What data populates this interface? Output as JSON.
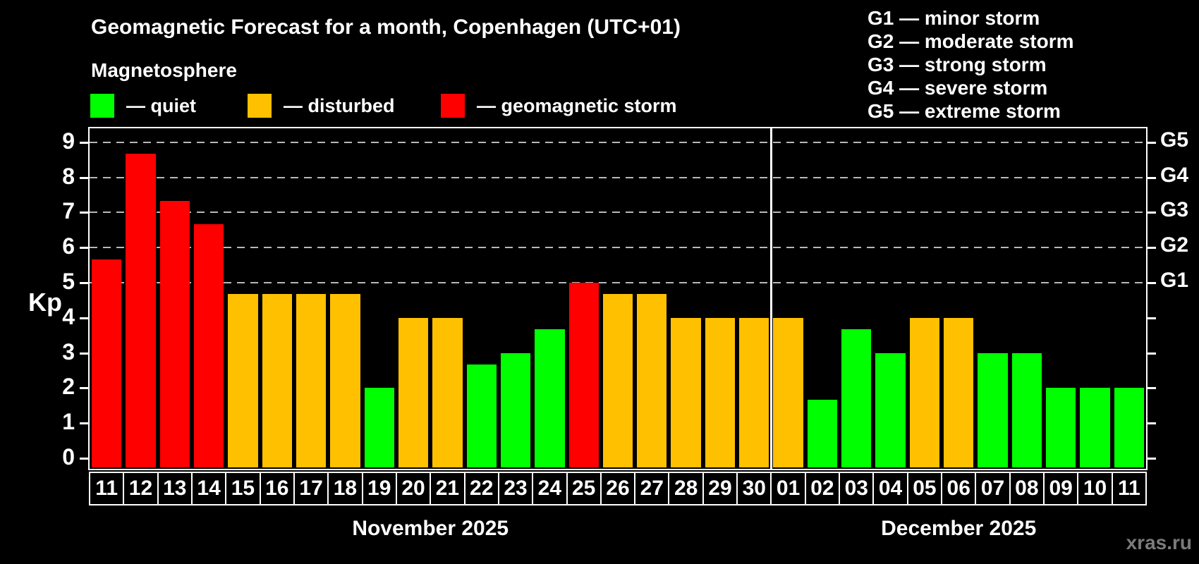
{
  "header": {
    "title": "Geomagnetic Forecast for a month, Copenhagen (UTC+01)",
    "subtitle": "Magnetosphere"
  },
  "legend": {
    "items": [
      {
        "label": "— quiet",
        "state": "quiet",
        "color": "#00ff00"
      },
      {
        "label": "— disturbed",
        "state": "disturbed",
        "color": "#ffc000"
      },
      {
        "label": "— geomagnetic storm",
        "state": "storm",
        "color": "#ff0000"
      }
    ]
  },
  "g_legend": {
    "items": [
      "G1 — minor storm",
      "G2 — moderate storm",
      "G3 — strong storm",
      "G4 — severe storm",
      "G5 — extreme storm"
    ]
  },
  "watermark": "xras.ru",
  "chart_data": {
    "type": "bar",
    "title": "Geomagnetic Forecast for a month, Copenhagen (UTC+01)",
    "subtitle": "Magnetosphere",
    "ylabel": "Kp",
    "ylim": [
      0,
      9
    ],
    "y_ticks": [
      0,
      1,
      2,
      3,
      4,
      5,
      6,
      7,
      8,
      9
    ],
    "gridlines_at": [
      5,
      6,
      7,
      8,
      9
    ],
    "grid": "dashed horizontal at storm levels only",
    "legend_position": "top-left states, top-right G-scale",
    "right_axis": [
      {
        "kp": 5,
        "label": "G1"
      },
      {
        "kp": 6,
        "label": "G2"
      },
      {
        "kp": 7,
        "label": "G3"
      },
      {
        "kp": 8,
        "label": "G4"
      },
      {
        "kp": 9,
        "label": "G5"
      }
    ],
    "state_colors": {
      "quiet": "#00ff00",
      "disturbed": "#ffc000",
      "storm": "#ff0000"
    },
    "months": [
      {
        "label": "November 2025",
        "days": [
          {
            "day": "11",
            "kp": 5.67,
            "state": "storm"
          },
          {
            "day": "12",
            "kp": 8.67,
            "state": "storm"
          },
          {
            "day": "13",
            "kp": 7.33,
            "state": "storm"
          },
          {
            "day": "14",
            "kp": 6.67,
            "state": "storm"
          },
          {
            "day": "15",
            "kp": 4.67,
            "state": "disturbed"
          },
          {
            "day": "16",
            "kp": 4.67,
            "state": "disturbed"
          },
          {
            "day": "17",
            "kp": 4.67,
            "state": "disturbed"
          },
          {
            "day": "18",
            "kp": 4.67,
            "state": "disturbed"
          },
          {
            "day": "19",
            "kp": 2.0,
            "state": "quiet"
          },
          {
            "day": "20",
            "kp": 4.0,
            "state": "disturbed"
          },
          {
            "day": "21",
            "kp": 4.0,
            "state": "disturbed"
          },
          {
            "day": "22",
            "kp": 2.67,
            "state": "quiet"
          },
          {
            "day": "23",
            "kp": 3.0,
            "state": "quiet"
          },
          {
            "day": "24",
            "kp": 3.67,
            "state": "quiet"
          },
          {
            "day": "25",
            "kp": 5.0,
            "state": "storm"
          },
          {
            "day": "26",
            "kp": 4.67,
            "state": "disturbed"
          },
          {
            "day": "27",
            "kp": 4.67,
            "state": "disturbed"
          },
          {
            "day": "28",
            "kp": 4.0,
            "state": "disturbed"
          },
          {
            "day": "29",
            "kp": 4.0,
            "state": "disturbed"
          },
          {
            "day": "30",
            "kp": 4.0,
            "state": "disturbed"
          }
        ]
      },
      {
        "label": "December 2025",
        "days": [
          {
            "day": "01",
            "kp": 4.0,
            "state": "disturbed"
          },
          {
            "day": "02",
            "kp": 1.67,
            "state": "quiet"
          },
          {
            "day": "03",
            "kp": 3.67,
            "state": "quiet"
          },
          {
            "day": "04",
            "kp": 3.0,
            "state": "quiet"
          },
          {
            "day": "05",
            "kp": 4.0,
            "state": "disturbed"
          },
          {
            "day": "06",
            "kp": 4.0,
            "state": "disturbed"
          },
          {
            "day": "07",
            "kp": 3.0,
            "state": "quiet"
          },
          {
            "day": "08",
            "kp": 3.0,
            "state": "quiet"
          },
          {
            "day": "09",
            "kp": 2.0,
            "state": "quiet"
          },
          {
            "day": "10",
            "kp": 2.0,
            "state": "quiet"
          },
          {
            "day": "11",
            "kp": 2.0,
            "state": "quiet"
          }
        ]
      }
    ]
  }
}
